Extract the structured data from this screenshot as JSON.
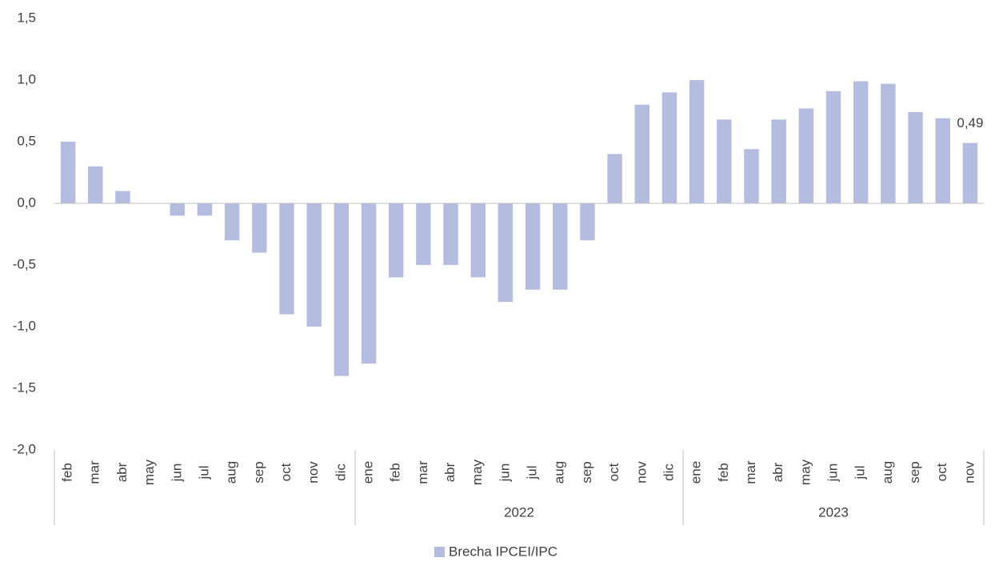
{
  "chart_data": {
    "type": "bar",
    "categories": [
      "feb",
      "mar",
      "abr",
      "may",
      "jun",
      "jul",
      "aug",
      "sep",
      "oct",
      "nov",
      "dic",
      "ene",
      "feb",
      "mar",
      "abr",
      "may",
      "jun",
      "jul",
      "aug",
      "sep",
      "oct",
      "nov",
      "dic",
      "ene",
      "feb",
      "mar",
      "abr",
      "may",
      "jun",
      "jul",
      "aug",
      "sep",
      "oct",
      "nov"
    ],
    "x_groups": [
      null,
      "2022",
      "2023"
    ],
    "x_group_sizes": [
      11,
      12,
      11
    ],
    "series": [
      {
        "name": "Brecha IPCEI/IPC",
        "color": "#b4bde0",
        "values": [
          0.5,
          0.3,
          0.1,
          0,
          -0.1,
          -0.1,
          -0.3,
          -0.4,
          -0.9,
          -1.0,
          -1.4,
          -1.3,
          -0.6,
          -0.5,
          -0.5,
          -0.6,
          -0.8,
          -0.7,
          -0.7,
          -0.3,
          0.4,
          0.8,
          0.9,
          1.0,
          0.68,
          0.44,
          0.68,
          0.77,
          0.91,
          0.99,
          0.97,
          0.74,
          0.69,
          0.49
        ],
        "value_labels": [
          null,
          null,
          null,
          null,
          null,
          null,
          null,
          null,
          null,
          null,
          null,
          null,
          null,
          null,
          null,
          null,
          null,
          null,
          null,
          null,
          null,
          null,
          null,
          null,
          null,
          null,
          null,
          null,
          null,
          null,
          null,
          null,
          null,
          "0,49"
        ]
      }
    ],
    "ylim": [
      -2.0,
      1.5
    ],
    "yticks": [
      {
        "value": 1.5,
        "label": "1,5"
      },
      {
        "value": 1.0,
        "label": "1,0"
      },
      {
        "value": 0.5,
        "label": "0,5"
      },
      {
        "value": 0.0,
        "label": "0,0"
      },
      {
        "value": -0.5,
        "label": "-0,5"
      },
      {
        "value": -1.0,
        "label": "-1,0"
      },
      {
        "value": -1.5,
        "label": "-1,5"
      },
      {
        "value": -2.0,
        "label": "-2,0"
      }
    ],
    "grid": false,
    "legend": "bottom"
  }
}
